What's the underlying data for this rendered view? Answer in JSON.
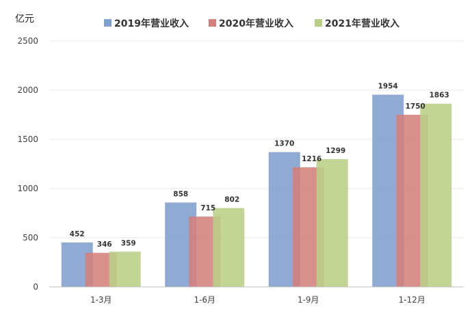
{
  "chart_data": {
    "type": "bar",
    "ylabel": "亿元",
    "categories": [
      "1-3月",
      "1-6月",
      "1-9月",
      "1-12月"
    ],
    "series": [
      {
        "name": "2019年营业收入",
        "color": "#7f9fce",
        "values": [
          452,
          858,
          1370,
          1954
        ]
      },
      {
        "name": "2020年营业收入",
        "color": "#d47f7c",
        "values": [
          346,
          715,
          1216,
          1750
        ]
      },
      {
        "name": "2021年营业收入",
        "color": "#b9cf86",
        "values": [
          359,
          802,
          1299,
          1863
        ]
      }
    ],
    "ylim": [
      0,
      2500
    ],
    "yticks": [
      "0",
      "500",
      "1000",
      "1500",
      "2000",
      "2500"
    ],
    "grid": true,
    "legend_position": "top"
  }
}
